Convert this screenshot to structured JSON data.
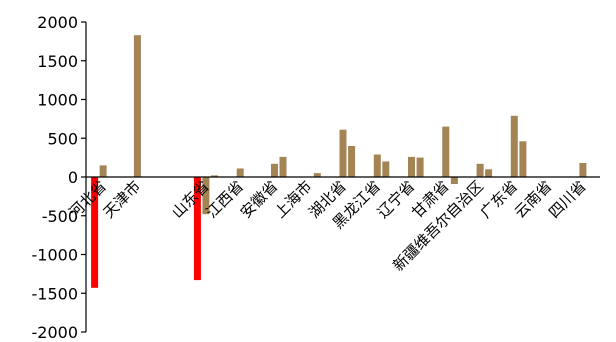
{
  "chart_data": {
    "type": "bar",
    "title": "",
    "xlabel": "",
    "ylabel": "",
    "ylim": [
      -2000,
      2000
    ],
    "y_ticks": [
      -2000,
      -1500,
      -1000,
      -500,
      0,
      500,
      1000,
      1500,
      2000
    ],
    "y_tick_labels": [
      "-2000",
      "-1500",
      "-1000",
      "-500",
      "0",
      "500",
      "1000",
      "1500",
      "2000"
    ],
    "grid": false,
    "legend": "none",
    "bar_color": "#a48354",
    "highlight_color": "#ff0000",
    "categories": [
      "河北省",
      "天津市",
      "北京市",
      "山东省",
      "江西省",
      "安徽省",
      "上海市",
      "湖北省",
      "黑龙江省",
      "辽宁省",
      "甘肃省",
      "新疆维吾尔自治区",
      "广东省",
      "云南省",
      "四川省"
    ],
    "category_labels_shown": [
      "河北省",
      "天津市",
      "",
      "山东省",
      "江西省",
      "安徽省",
      "上海市",
      "湖北省",
      "黑龙江省",
      "辽宁省",
      "甘肃省",
      "新疆维吾尔自治区",
      "广东省",
      "云南省",
      "四川省"
    ],
    "series": [
      {
        "values": [
          -1430,
          null,
          null,
          -1330,
          null,
          null,
          null,
          null,
          null,
          null,
          null,
          null,
          null,
          null,
          null
        ]
      },
      {
        "values": [
          150,
          1830,
          null,
          -480,
          110,
          170,
          0,
          610,
          290,
          260,
          650,
          170,
          790,
          0,
          180
        ]
      },
      {
        "values": [
          null,
          null,
          null,
          20,
          null,
          260,
          50,
          400,
          200,
          250,
          -90,
          100,
          460,
          null,
          null
        ]
      }
    ]
  }
}
